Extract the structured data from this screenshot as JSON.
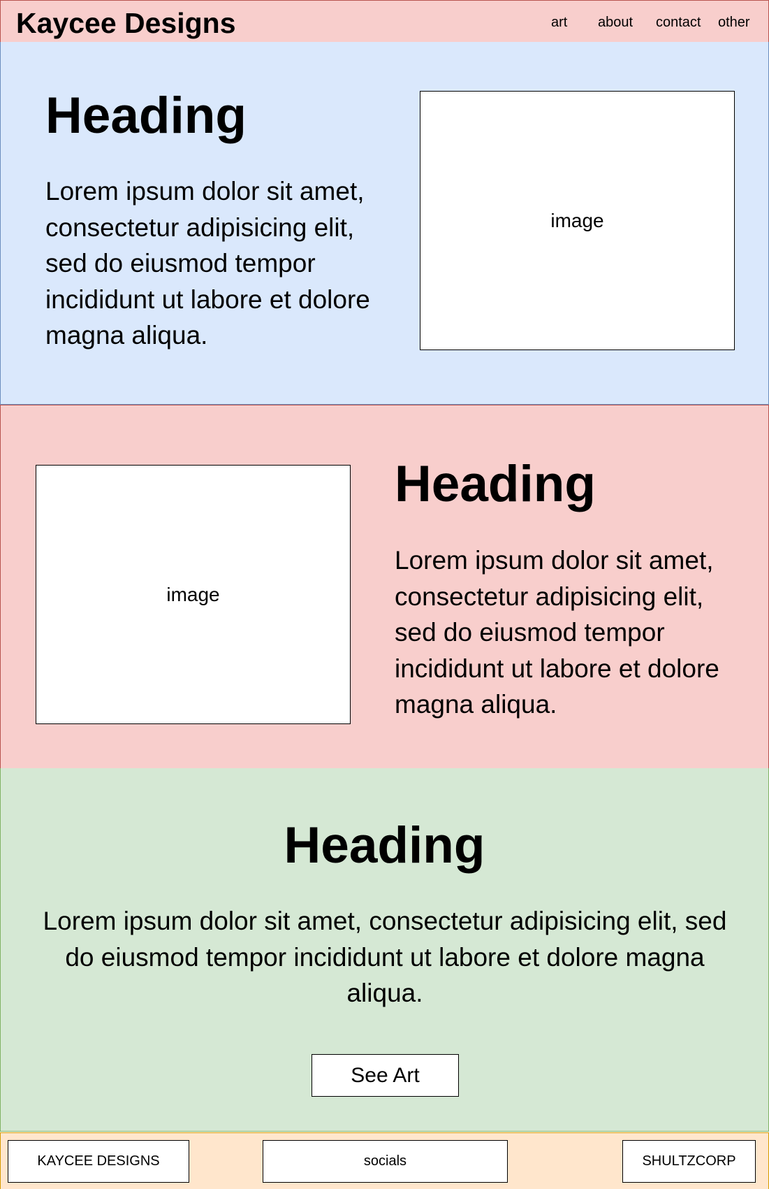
{
  "header": {
    "brand": "Kaycee Designs",
    "nav": [
      "art",
      "about",
      "contact",
      "other"
    ]
  },
  "sections": [
    {
      "heading": "Heading",
      "body": "Lorem ipsum dolor sit amet, consectetur adipisicing elit, sed do eiusmod tempor incididunt ut labore et dolore magna aliqua.",
      "image_label": "image"
    },
    {
      "heading": "Heading",
      "body": "Lorem ipsum dolor sit amet, consectetur adipisicing elit, sed do eiusmod tempor incididunt ut labore et dolore magna aliqua.",
      "image_label": "image"
    },
    {
      "heading": "Heading",
      "body": "Lorem ipsum dolor sit amet, consectetur adipisicing elit, sed do eiusmod tempor incididunt ut labore et dolore magna aliqua.",
      "button_label": "See Art"
    }
  ],
  "footer": {
    "brand": "KAYCEE DESIGNS",
    "socials": "socials",
    "company": "SHULTZCORP"
  },
  "colors": {
    "header_bg": "#f8cecc",
    "section1_bg": "#dae8fc",
    "section2_bg": "#f8cecc",
    "section3_bg": "#d5e8d4",
    "footer_bg": "#ffe6cc"
  }
}
